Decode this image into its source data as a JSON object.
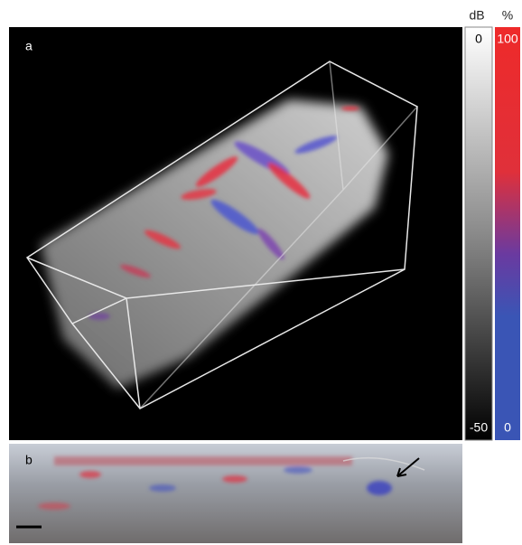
{
  "panels": {
    "a": {
      "label": "a"
    },
    "b": {
      "label": "b"
    }
  },
  "colorbars": {
    "intensity": {
      "unit": "dB",
      "max": 0,
      "min": -50
    },
    "fraction": {
      "unit": "%",
      "max": 100,
      "min": 0
    }
  }
}
